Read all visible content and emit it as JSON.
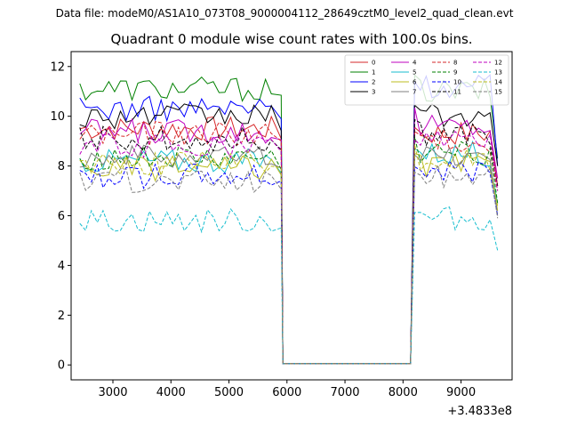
{
  "supertitle": "Data file: modeM0/AS1A10_073T08_9000004112_28649cztM0_level2_quad_clean.evt",
  "chart_data": {
    "type": "line",
    "title": "Quadrant 0 module wise count rates with 100.0s bins.",
    "xlabel": "",
    "ylabel": "",
    "x_offset_label": "+3.4833e8",
    "xlim": [
      2280,
      9880
    ],
    "ylim": [
      -0.6,
      12.6
    ],
    "x_ticks": [
      3000,
      4000,
      5000,
      6000,
      7000,
      8000,
      9000
    ],
    "x_tick_labels": [
      "3000",
      "4000",
      "5000",
      "6000",
      "7000",
      "8000",
      "9000"
    ],
    "y_ticks": [
      0,
      2,
      4,
      6,
      8,
      10,
      12
    ],
    "y_tick_labels": [
      "0",
      "2",
      "4",
      "6",
      "8",
      "10",
      "12"
    ],
    "legend_location": "upper right",
    "series": [
      {
        "name": "0",
        "color": "#d62728",
        "dash": "solid",
        "level": 9.5,
        "post": 9.3,
        "end": 7.2
      },
      {
        "name": "1",
        "color": "#008000",
        "dash": "solid",
        "level": 11.1,
        "post": 11.0,
        "end": 8.3
      },
      {
        "name": "2",
        "color": "#0000ff",
        "dash": "solid",
        "level": 10.3,
        "post": 11.2,
        "end": 8.0
      },
      {
        "name": "3",
        "color": "#000000",
        "dash": "solid",
        "level": 10.0,
        "post": 10.0,
        "end": 8.0
      },
      {
        "name": "4",
        "color": "#bf00bf",
        "dash": "solid",
        "level": 9.4,
        "post": 9.6,
        "end": 7.5
      },
      {
        "name": "5",
        "color": "#17becf",
        "dash": "solid",
        "level": 8.2,
        "post": 8.5,
        "end": 6.5
      },
      {
        "name": "6",
        "color": "#bcbd22",
        "dash": "solid",
        "level": 7.9,
        "post": 8.0,
        "end": 6.2
      },
      {
        "name": "7",
        "color": "#7f7f7f",
        "dash": "solid",
        "level": 8.4,
        "post": 8.4,
        "end": 6.0
      },
      {
        "name": "8",
        "color": "#d62728",
        "dash": "dashed",
        "level": 9.3,
        "post": 9.0,
        "end": 7.0
      },
      {
        "name": "9",
        "color": "#008000",
        "dash": "dashed",
        "level": 8.3,
        "post": 8.5,
        "end": 6.5
      },
      {
        "name": "10",
        "color": "#0000ff",
        "dash": "dashed",
        "level": 7.6,
        "post": 7.8,
        "end": 6.0
      },
      {
        "name": "11",
        "color": "#000000",
        "dash": "dashed",
        "level": 9.1,
        "post": 9.3,
        "end": 7.2
      },
      {
        "name": "12",
        "color": "#bf00bf",
        "dash": "dashed",
        "level": 8.8,
        "post": 9.0,
        "end": 7.0
      },
      {
        "name": "13",
        "color": "#17becf",
        "dash": "dashed",
        "level": 5.8,
        "post": 5.9,
        "end": 4.6
      },
      {
        "name": "14",
        "color": "#bcbd22",
        "dash": "dashed",
        "level": 8.1,
        "post": 8.2,
        "end": 6.4
      },
      {
        "name": "15",
        "color": "#7f7f7f",
        "dash": "dashed",
        "level": 7.4,
        "post": 7.6,
        "end": 5.9
      }
    ],
    "time_x_first": 2430,
    "time_step": 100,
    "gap_start": 5930,
    "gap_end": 8130,
    "time_x_last": 9630
  }
}
